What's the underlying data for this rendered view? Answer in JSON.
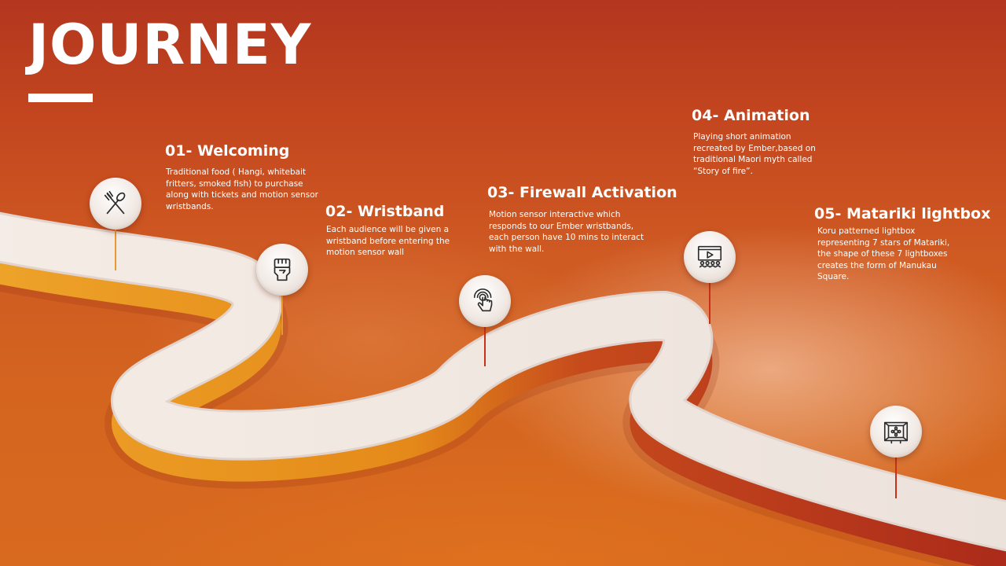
{
  "title": "JOURNEY",
  "steps": [
    {
      "title": "01- Welcoming",
      "desc": "Traditional food ( Hangi, whitebait fritters, smoked fish) to purchase along with tickets and motion sensor wristbands.",
      "icon": "fork-spoon-icon"
    },
    {
      "title": "02- Wristband",
      "desc": "Each audience will be given a wristband before entering the motion sensor wall",
      "icon": "wristband-fist-icon"
    },
    {
      "title": "03- Firewall Activation",
      "desc": "Motion sensor interactive which responds to our Ember wristbands, each person have 10 mins to interact with the wall.",
      "icon": "touch-hand-icon"
    },
    {
      "title": "04-  Animation",
      "desc": "Playing short animation recreated by Ember,based on traditional Maori myth called “Story of fire”.",
      "icon": "cinema-screen-icon"
    },
    {
      "title": "05- Matariki lightbox",
      "desc": "Koru patterned lightbox representing 7 stars of Matariki, the shape of these 7 lightboxes creates the form of Manukau Square.",
      "icon": "lightbox-icon"
    }
  ],
  "colors": {
    "background_top": "#b3361f",
    "background_bottom": "#d86a1f",
    "road_surface": "#f3ebe6",
    "road_side_orange": "#e8901c",
    "road_side_red": "#b5301a",
    "text": "#ffffff"
  }
}
